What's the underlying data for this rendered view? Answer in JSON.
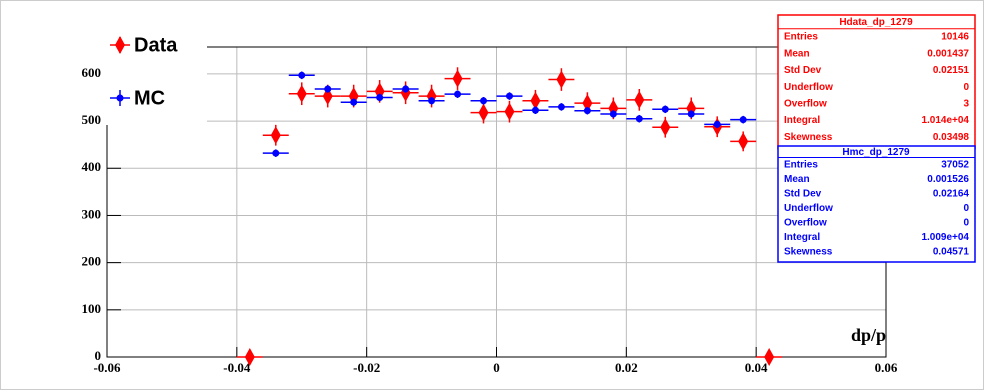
{
  "chart_data": {
    "type": "scatter",
    "xlabel": "dp/p",
    "xlim": [
      -0.06,
      0.06
    ],
    "ylim": [
      0,
      657
    ],
    "xticks": [
      -0.06,
      -0.04,
      -0.02,
      0,
      0.02,
      0.04,
      0.06
    ],
    "yticks": [
      0,
      100,
      200,
      300,
      400,
      500,
      600
    ],
    "grid": true,
    "legend": "upper left",
    "xerr": 0.002,
    "series": [
      {
        "name": "Data",
        "color": "#ff0000",
        "marker": "diamond",
        "x": [
          -0.038,
          -0.034,
          -0.03,
          -0.026,
          -0.022,
          -0.018,
          -0.014,
          -0.01,
          -0.006,
          -0.002,
          0.002,
          0.006,
          0.01,
          0.014,
          0.018,
          0.022,
          0.026,
          0.03,
          0.034,
          0.038,
          0.042
        ],
        "values": [
          0,
          470,
          558,
          553,
          553,
          563,
          560,
          553,
          590,
          518,
          520,
          543,
          588,
          538,
          527,
          545,
          487,
          527,
          488,
          457,
          0
        ],
        "errors": [
          0,
          22,
          24,
          24,
          24,
          24,
          24,
          24,
          24,
          23,
          23,
          23,
          24,
          23,
          23,
          23,
          22,
          23,
          22,
          21,
          0
        ]
      },
      {
        "name": "MC",
        "color": "#0000ff",
        "marker": "circle",
        "x": [
          -0.034,
          -0.03,
          -0.026,
          -0.022,
          -0.018,
          -0.014,
          -0.01,
          -0.006,
          -0.002,
          0.002,
          0.006,
          0.01,
          0.014,
          0.018,
          0.022,
          0.026,
          0.03,
          0.034,
          0.038
        ],
        "values": [
          432,
          597,
          568,
          540,
          550,
          568,
          543,
          557,
          543,
          553,
          523,
          530,
          522,
          515,
          505,
          525,
          515,
          493,
          503
        ],
        "errors": [
          8,
          8,
          8,
          8,
          8,
          8,
          8,
          8,
          8,
          8,
          8,
          8,
          8,
          8,
          8,
          8,
          8,
          8,
          8
        ]
      }
    ],
    "stats": [
      {
        "title": "Hdata_dp_1279",
        "color": "#ff0000",
        "rows": [
          [
            "Entries",
            "10146"
          ],
          [
            "Mean",
            "0.001437"
          ],
          [
            "Std Dev",
            "0.02151"
          ],
          [
            "Underflow",
            "0"
          ],
          [
            "Overflow",
            "3"
          ],
          [
            "Integral",
            "1.014e+04"
          ],
          [
            "Skewness",
            "0.03498"
          ]
        ]
      },
      {
        "title": "Hmc_dp_1279",
        "color": "#0000ff",
        "rows": [
          [
            "Entries",
            "37052"
          ],
          [
            "Mean",
            "0.001526"
          ],
          [
            "Std Dev",
            "0.02164"
          ],
          [
            "Underflow",
            "0"
          ],
          [
            "Overflow",
            "0"
          ],
          [
            "Integral",
            "1.009e+04"
          ],
          [
            "Skewness",
            "0.04571"
          ]
        ]
      }
    ]
  }
}
